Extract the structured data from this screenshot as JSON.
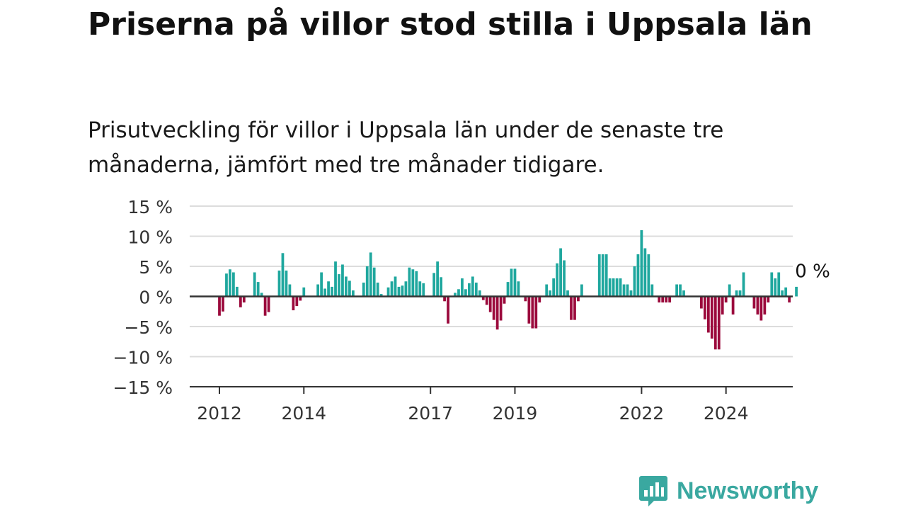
{
  "title": "Priserna på villor stod stilla i Uppsala län",
  "subtitle": "Prisutveckling för villor i Uppsala län under de senaste tre månaderna, jämfört med tre månader tidigare.",
  "brand": {
    "name": "Newsworthy",
    "color": "#3aa8a0"
  },
  "chart_data": {
    "type": "bar",
    "title": "Priserna på villor stod stilla i Uppsala län",
    "subtitle": "Prisutveckling för villor i Uppsala län under de senaste tre månaderna, jämfört med tre månader tidigare.",
    "ylim": [
      -15,
      15
    ],
    "y_ticks": [
      15,
      10,
      5,
      0,
      -5,
      -10,
      -15
    ],
    "y_tick_labels": [
      "15 %",
      "10 %",
      "5 %",
      "0 %",
      "−5 %",
      "−10 %",
      "−15 %"
    ],
    "x_tick_labels": [
      "2012",
      "2014",
      "2017",
      "2019",
      "2022",
      "2024"
    ],
    "x_tick_dates": [
      "2012-01",
      "2014-01",
      "2017-01",
      "2019-01",
      "2022-01",
      "2024-01"
    ],
    "grid": true,
    "positive_color": "#1fa79e",
    "negative_color": "#9b0a3c",
    "last_value_label": "0 %",
    "start_month": "2012-01",
    "values": [
      -3.2,
      -2.5,
      3.8,
      4.5,
      4.0,
      1.6,
      -1.8,
      -1.0,
      0,
      0,
      4.0,
      2.4,
      0.6,
      -3.2,
      -2.6,
      0,
      0,
      4.3,
      7.2,
      4.3,
      2.0,
      -2.3,
      -1.6,
      -0.7,
      1.5,
      0,
      0,
      0,
      2.0,
      4.0,
      1.3,
      2.5,
      1.6,
      5.8,
      3.7,
      5.3,
      3.3,
      2.6,
      1.0,
      0,
      0,
      2.3,
      5.0,
      7.3,
      4.8,
      2.3,
      0.4,
      0,
      1.5,
      2.5,
      3.3,
      1.6,
      1.8,
      2.5,
      4.8,
      4.5,
      4.2,
      2.5,
      2.2,
      0,
      0,
      3.9,
      5.8,
      3.2,
      -0.8,
      -4.5,
      0,
      0.6,
      1.2,
      3.0,
      1.2,
      2.2,
      3.3,
      2.3,
      1.0,
      -0.6,
      -1.4,
      -2.6,
      -3.9,
      -5.5,
      -4.0,
      -1.2,
      2.4,
      4.6,
      4.6,
      2.5,
      0,
      -0.8,
      -4.5,
      -5.3,
      -5.3,
      -1.0,
      0,
      2.0,
      1.0,
      3.0,
      5.5,
      8.0,
      6.0,
      1.0,
      -3.9,
      -3.9,
      -0.8,
      2.0,
      0,
      0,
      0,
      0,
      7.0,
      7.0,
      7.0,
      3.0,
      3.0,
      3.0,
      3.0,
      2.0,
      2.0,
      1.0,
      5.0,
      7.0,
      11.0,
      8.0,
      7.0,
      2.0,
      0,
      -1.0,
      -1.0,
      -1.0,
      -1.0,
      0,
      2.0,
      2.0,
      1.0,
      0,
      0,
      0,
      0,
      -2.0,
      -3.8,
      -6.0,
      -7.0,
      -8.8,
      -8.8,
      -3.0,
      -1.0,
      2.0,
      -3.0,
      1.0,
      1.0,
      4.0,
      0,
      0,
      -2.0,
      -3.0,
      -4.0,
      -3.0,
      -1.0,
      4.0,
      3.0,
      4.0,
      1.0,
      1.5,
      -1.0,
      0,
      1.6,
      0
    ]
  }
}
